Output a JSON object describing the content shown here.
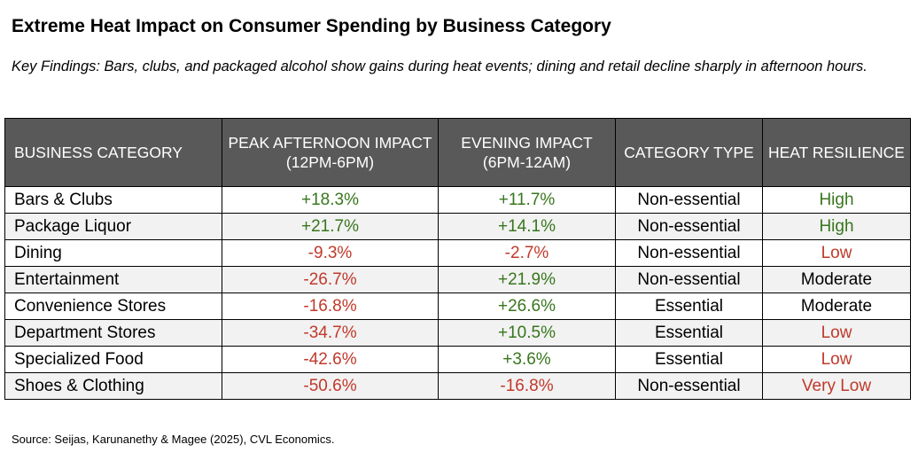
{
  "title": "Extreme Heat Impact on Consumer Spending by Business Category",
  "subtitle": "Key Findings: Bars, clubs, and packaged alcohol show gains during heat events; dining and retail decline sharply in afternoon hours.",
  "source": "Source: Seijas, Karunanethy & Magee (2025), CVL Economics.",
  "colors": {
    "header_bg": "#595959",
    "positive": "#38761d",
    "negative": "#c0392b",
    "alt_row": "#f2f2f2"
  },
  "chart_data": {
    "type": "table",
    "columns": [
      "BUSINESS CATEGORY",
      "PEAK AFTERNOON IMPACT (12PM-6PM)",
      "EVENING IMPACT (6PM-12AM)",
      "CATEGORY TYPE",
      "HEAT RESILIENCE"
    ],
    "rows": [
      [
        "Bars & Clubs",
        "+18.3%",
        "+11.7%",
        "Non-essential",
        "High"
      ],
      [
        "Package Liquor",
        "+21.7%",
        "+14.1%",
        "Non-essential",
        "High"
      ],
      [
        "Dining",
        "-9.3%",
        "-2.7%",
        "Non-essential",
        "Low"
      ],
      [
        "Entertainment",
        "-26.7%",
        "+21.9%",
        "Non-essential",
        "Moderate"
      ],
      [
        "Convenience Stores",
        "-16.8%",
        "+26.6%",
        "Essential",
        "Moderate"
      ],
      [
        "Department Stores",
        "-34.7%",
        "+10.5%",
        "Essential",
        "Low"
      ],
      [
        "Specialized Food",
        "-42.6%",
        "+3.6%",
        "Essential",
        "Low"
      ],
      [
        "Shoes & Clothing",
        "-50.6%",
        "-16.8%",
        "Non-essential",
        "Very Low"
      ]
    ]
  }
}
